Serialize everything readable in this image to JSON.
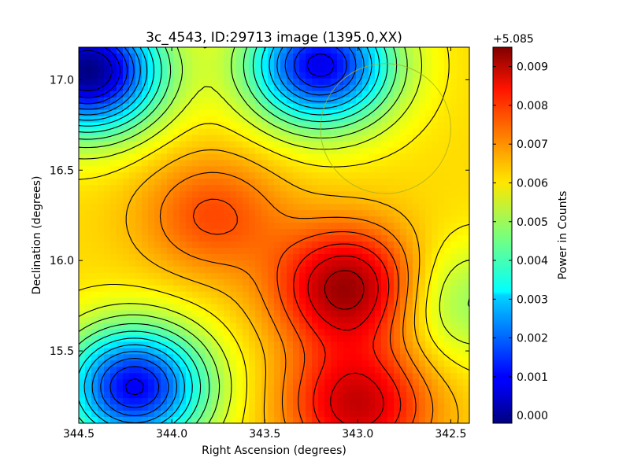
{
  "chart_data": {
    "type": "heatmap",
    "title": "3c_4543, ID:29713 image (1395.0,XX)",
    "xlabel": "Right Ascension (degrees)",
    "ylabel": "Declination (degrees)",
    "xlim": [
      344.5,
      342.4
    ],
    "ylim": [
      15.1,
      17.18
    ],
    "x_ticks": [
      344.5,
      344.0,
      343.5,
      343.0,
      342.5
    ],
    "x_tick_labels": [
      "344.5",
      "344.0",
      "343.5",
      "343.0",
      "342.5"
    ],
    "y_ticks": [
      15.5,
      16.0,
      16.5,
      17.0
    ],
    "y_tick_labels": [
      "15.5",
      "16.0",
      "16.5",
      "17.0"
    ],
    "colormap": "jet",
    "colorbar": {
      "label": "Power in Counts",
      "offset_text": "+5.085",
      "range": [
        -0.0002,
        0.0095
      ],
      "ticks": [
        0.0,
        0.001,
        0.002,
        0.003,
        0.004,
        0.005,
        0.006,
        0.007,
        0.008,
        0.009
      ],
      "tick_labels": [
        "0.000",
        "0.001",
        "0.002",
        "0.003",
        "0.004",
        "0.005",
        "0.006",
        "0.007",
        "0.008",
        "0.009"
      ]
    },
    "grid": false,
    "contours": true,
    "features": [
      {
        "kind": "minimum",
        "ra": 344.45,
        "dec": 17.05,
        "value": -0.0002
      },
      {
        "kind": "minimum",
        "ra": 343.2,
        "dec": 17.08,
        "value": 0.0008
      },
      {
        "kind": "minimum",
        "ra": 344.2,
        "dec": 15.3,
        "value": 0.0009
      },
      {
        "kind": "minimum",
        "ra": 342.45,
        "dec": 15.77,
        "value": 0.0048
      },
      {
        "kind": "maximum",
        "ra": 343.05,
        "dec": 15.85,
        "value": 0.0093
      },
      {
        "kind": "maximum",
        "ra": 343.78,
        "dec": 16.25,
        "value": 0.0076
      },
      {
        "kind": "maximum",
        "ra": 343.0,
        "dec": 15.2,
        "value": 0.0088
      }
    ],
    "circle_marker": {
      "ra": 342.85,
      "dec": 16.73,
      "radius_deg": 0.35
    }
  }
}
